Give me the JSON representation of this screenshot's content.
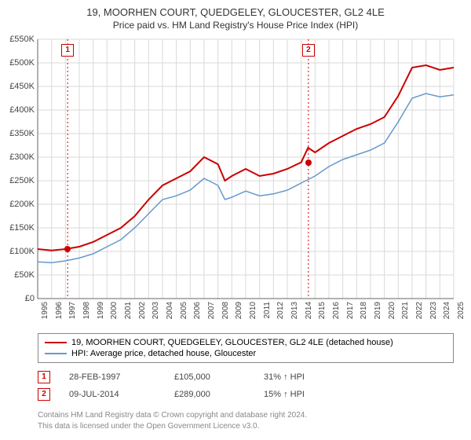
{
  "title": "19, MOORHEN COURT, QUEDGELEY, GLOUCESTER, GL2 4LE",
  "subtitle": "Price paid vs. HM Land Registry's House Price Index (HPI)",
  "chart": {
    "type": "line",
    "background_color": "#ffffff",
    "grid_color": "#d9d9d9",
    "axis_color": "#666666",
    "xlim": [
      1995,
      2025
    ],
    "ylim": [
      0,
      550000
    ],
    "ytick_step": 50000,
    "yticks": [
      "£0",
      "£50K",
      "£100K",
      "£150K",
      "£200K",
      "£250K",
      "£300K",
      "£350K",
      "£400K",
      "£450K",
      "£500K",
      "£550K"
    ],
    "xticks": [
      1995,
      1996,
      1997,
      1998,
      1999,
      2000,
      2001,
      2002,
      2003,
      2004,
      2005,
      2006,
      2007,
      2008,
      2009,
      2010,
      2011,
      2012,
      2013,
      2014,
      2015,
      2016,
      2017,
      2018,
      2019,
      2020,
      2021,
      2022,
      2023,
      2024,
      2025
    ],
    "series_property": {
      "label": "19, MOORHEN COURT, QUEDGELEY, GLOUCESTER, GL2 4LE (detached house)",
      "color": "#cc0000",
      "line_width": 2,
      "data": [
        [
          1995,
          105
        ],
        [
          1996,
          102
        ],
        [
          1997,
          105
        ],
        [
          1998,
          110
        ],
        [
          1999,
          120
        ],
        [
          2000,
          135
        ],
        [
          2001,
          150
        ],
        [
          2002,
          175
        ],
        [
          2003,
          210
        ],
        [
          2004,
          240
        ],
        [
          2005,
          255
        ],
        [
          2006,
          270
        ],
        [
          2007,
          300
        ],
        [
          2008,
          285
        ],
        [
          2008.5,
          250
        ],
        [
          2009,
          260
        ],
        [
          2010,
          275
        ],
        [
          2011,
          260
        ],
        [
          2012,
          265
        ],
        [
          2013,
          275
        ],
        [
          2014,
          289
        ],
        [
          2014.5,
          320
        ],
        [
          2015,
          310
        ],
        [
          2016,
          330
        ],
        [
          2017,
          345
        ],
        [
          2018,
          360
        ],
        [
          2019,
          370
        ],
        [
          2020,
          385
        ],
        [
          2021,
          430
        ],
        [
          2022,
          490
        ],
        [
          2023,
          495
        ],
        [
          2024,
          485
        ],
        [
          2025,
          490
        ]
      ]
    },
    "series_hpi": {
      "label": "HPI: Average price, detached house, Gloucester",
      "color": "#6699cc",
      "line_width": 1.5,
      "data": [
        [
          1995,
          78
        ],
        [
          1996,
          76
        ],
        [
          1997,
          80
        ],
        [
          1998,
          86
        ],
        [
          1999,
          95
        ],
        [
          2000,
          110
        ],
        [
          2001,
          125
        ],
        [
          2002,
          150
        ],
        [
          2003,
          180
        ],
        [
          2004,
          210
        ],
        [
          2005,
          218
        ],
        [
          2006,
          230
        ],
        [
          2007,
          255
        ],
        [
          2008,
          240
        ],
        [
          2008.5,
          210
        ],
        [
          2009,
          215
        ],
        [
          2010,
          228
        ],
        [
          2011,
          218
        ],
        [
          2012,
          222
        ],
        [
          2013,
          230
        ],
        [
          2014,
          245
        ],
        [
          2015,
          260
        ],
        [
          2016,
          280
        ],
        [
          2017,
          295
        ],
        [
          2018,
          305
        ],
        [
          2019,
          315
        ],
        [
          2020,
          330
        ],
        [
          2021,
          375
        ],
        [
          2022,
          425
        ],
        [
          2023,
          435
        ],
        [
          2024,
          428
        ],
        [
          2025,
          432
        ]
      ]
    },
    "sale_markers": [
      {
        "n": "1",
        "x": 1997.16,
        "y": 105,
        "vline_color": "#cc0000"
      },
      {
        "n": "2",
        "x": 2014.52,
        "y": 289,
        "vline_color": "#cc0000"
      }
    ],
    "label_fontsize": 11
  },
  "legend_rows": [
    {
      "color": "#cc0000",
      "label": "19, MOORHEN COURT, QUEDGELEY, GLOUCESTER, GL2 4LE (detached house)"
    },
    {
      "color": "#6699cc",
      "label": "HPI: Average price, detached house, Gloucester"
    }
  ],
  "sales": [
    {
      "n": "1",
      "date": "28-FEB-1997",
      "price": "£105,000",
      "delta": "31% ↑ HPI"
    },
    {
      "n": "2",
      "date": "09-JUL-2014",
      "price": "£289,000",
      "delta": "15% ↑ HPI"
    }
  ],
  "footer1": "Contains HM Land Registry data © Crown copyright and database right 2024.",
  "footer2": "This data is licensed under the Open Government Licence v3.0."
}
